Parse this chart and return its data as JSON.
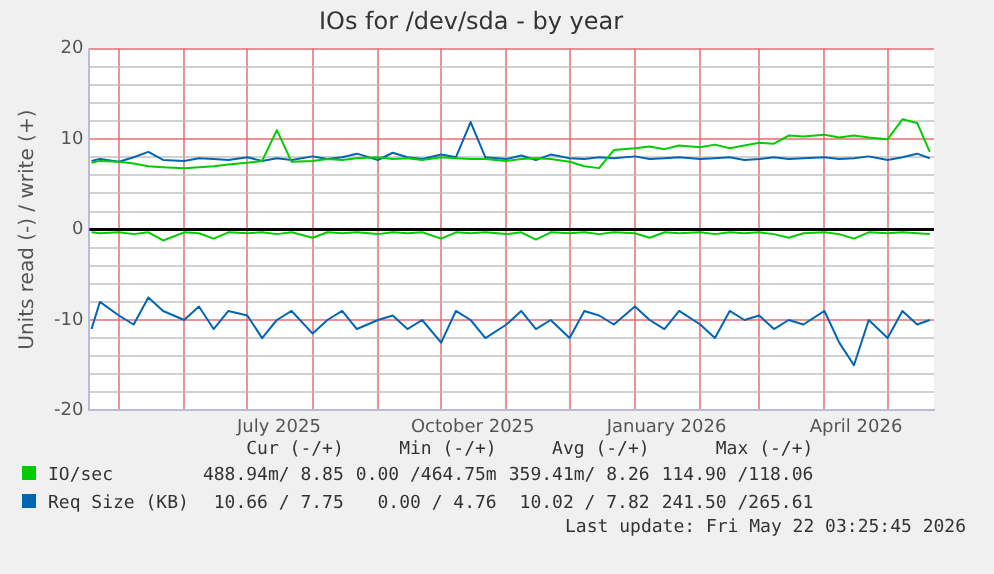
{
  "chart_data": {
    "type": "line",
    "title": "IOs for /dev/sda - by year",
    "ylabel": "Units read (-) / write (+)",
    "x": [
      "2025-04-18",
      "2025-04-22",
      "2025-05-01",
      "2025-05-08",
      "2025-05-15",
      "2025-05-22",
      "2025-06-01",
      "2025-06-08",
      "2025-06-15",
      "2025-06-22",
      "2025-07-01",
      "2025-07-08",
      "2025-07-15",
      "2025-07-22",
      "2025-08-01",
      "2025-08-08",
      "2025-08-15",
      "2025-08-22",
      "2025-09-01",
      "2025-09-08",
      "2025-09-15",
      "2025-09-22",
      "2025-10-01",
      "2025-10-08",
      "2025-10-15",
      "2025-10-22",
      "2025-11-01",
      "2025-11-08",
      "2025-11-15",
      "2025-11-22",
      "2025-12-01",
      "2025-12-08",
      "2025-12-15",
      "2025-12-22",
      "2026-01-01",
      "2026-01-08",
      "2026-01-15",
      "2026-01-22",
      "2026-02-01",
      "2026-02-08",
      "2026-02-15",
      "2026-02-22",
      "2026-03-01",
      "2026-03-08",
      "2026-03-15",
      "2026-03-22",
      "2026-04-01",
      "2026-04-08",
      "2026-04-15",
      "2026-04-22",
      "2026-05-01",
      "2026-05-08",
      "2026-05-15",
      "2026-05-21"
    ],
    "series": [
      {
        "color": "#00cc00",
        "values": [
          -0.3,
          -0.4,
          -0.3,
          -0.5,
          -0.3,
          -1.2,
          -0.3,
          -0.4,
          -1.0,
          -0.3,
          -0.4,
          -0.3,
          -0.5,
          -0.3,
          -0.9,
          -0.3,
          -0.4,
          -0.3,
          -0.5,
          -0.3,
          -0.4,
          -0.3,
          -1.0,
          -0.3,
          -0.4,
          -0.3,
          -0.5,
          -0.3,
          -1.1,
          -0.3,
          -0.4,
          -0.3,
          -0.5,
          -0.3,
          -0.4,
          -0.9,
          -0.3,
          -0.4,
          -0.3,
          -0.5,
          -0.3,
          -0.4,
          -0.3,
          -0.5,
          -0.9,
          -0.4,
          -0.3,
          -0.5,
          -1.0,
          -0.3,
          -0.4,
          -0.3,
          -0.4,
          -0.5
        ]
      },
      {
        "name": "IO/sec",
        "color": "#00cc00",
        "values": [
          7.4,
          7.6,
          7.5,
          7.3,
          7.0,
          6.9,
          6.8,
          6.9,
          7.0,
          7.2,
          7.4,
          7.6,
          11.0,
          7.5,
          7.6,
          7.8,
          7.7,
          7.9,
          8.0,
          7.8,
          7.9,
          7.7,
          8.0,
          7.9,
          7.8,
          7.8,
          7.6,
          7.8,
          7.9,
          7.8,
          7.5,
          7.0,
          6.8,
          8.8,
          9.0,
          9.2,
          8.9,
          9.3,
          9.1,
          9.4,
          9.0,
          9.3,
          9.6,
          9.5,
          10.4,
          10.3,
          10.5,
          10.2,
          10.4,
          10.2,
          10.0,
          12.2,
          11.8,
          8.6
        ]
      },
      {
        "color": "#0066b3",
        "values": [
          -11,
          -8,
          -9.5,
          -10.5,
          -7.5,
          -9,
          -10,
          -8.5,
          -11,
          -9,
          -9.5,
          -12,
          -10,
          -9,
          -11.5,
          -10,
          -9,
          -11,
          -10,
          -9.5,
          -11,
          -10,
          -12.5,
          -9,
          -10,
          -12,
          -10.5,
          -9,
          -11,
          -10,
          -12,
          -9,
          -9.5,
          -10.5,
          -8.5,
          -10,
          -11,
          -9,
          -10.5,
          -12,
          -9,
          -10,
          -9.5,
          -11,
          -10,
          -10.5,
          -9,
          -12.5,
          -15,
          -10,
          -12,
          -9,
          -10.5,
          -10
        ]
      },
      {
        "name": "Req Size (KB)",
        "color": "#0066b3",
        "values": [
          7.6,
          7.8,
          7.5,
          8.0,
          8.6,
          7.7,
          7.6,
          7.9,
          7.8,
          7.7,
          8.0,
          7.6,
          7.9,
          7.7,
          8.1,
          7.8,
          8.0,
          8.4,
          7.7,
          8.5,
          8.0,
          7.8,
          8.3,
          8.0,
          11.9,
          8.0,
          7.8,
          8.2,
          7.7,
          8.3,
          7.9,
          7.8,
          8.0,
          7.9,
          8.1,
          7.8,
          7.9,
          8.0,
          7.8,
          7.9,
          8.0,
          7.7,
          7.8,
          8.0,
          7.8,
          7.9,
          8.0,
          7.8,
          7.9,
          8.1,
          7.7,
          8.0,
          8.4,
          7.9
        ]
      }
    ],
    "xlim": [
      "2025-04-17",
      "2026-05-23"
    ],
    "xticks": [
      {
        "value": "2025-05-01",
        "label": null
      },
      {
        "value": "2025-06-01",
        "label": null
      },
      {
        "value": "2025-07-01",
        "label": null
      },
      {
        "value": "2025-07-16",
        "label": "July 2025"
      },
      {
        "value": "2025-08-01",
        "label": null
      },
      {
        "value": "2025-09-01",
        "label": null
      },
      {
        "value": "2025-10-01",
        "label": null
      },
      {
        "value": "2025-10-16",
        "label": "October 2025"
      },
      {
        "value": "2025-11-01",
        "label": null
      },
      {
        "value": "2025-12-01",
        "label": null
      },
      {
        "value": "2026-01-01",
        "label": null
      },
      {
        "value": "2026-01-16",
        "label": "January 2026"
      },
      {
        "value": "2026-02-01",
        "label": null
      },
      {
        "value": "2026-03-01",
        "label": null
      },
      {
        "value": "2026-04-01",
        "label": null
      },
      {
        "value": "2026-04-16",
        "label": "April 2026"
      },
      {
        "value": "2026-05-01",
        "label": null
      }
    ],
    "ylim": [
      -20,
      20
    ],
    "yticks": [
      -20,
      {
        "value": -18,
        "label": null
      },
      {
        "value": -16,
        "label": null
      },
      {
        "value": -14,
        "label": null
      },
      {
        "value": -12,
        "label": null
      },
      -10,
      {
        "value": -8,
        "label": null
      },
      {
        "value": -6,
        "label": null
      },
      {
        "value": -4,
        "label": null
      },
      {
        "value": -2,
        "label": null
      },
      0,
      {
        "value": 2,
        "label": null
      },
      {
        "value": 4,
        "label": null
      },
      {
        "value": 6,
        "label": null
      },
      {
        "value": 8,
        "label": null
      },
      10,
      {
        "value": 12,
        "label": null
      },
      {
        "value": 14,
        "label": null
      },
      {
        "value": 16,
        "label": null
      },
      {
        "value": 18,
        "label": null
      },
      20
    ],
    "ref_lines": [
      {
        "axis": "y",
        "value": 0,
        "color": "#000000"
      }
    ],
    "grid": true,
    "legend": "bottom",
    "marker": "none",
    "line_style": "solid",
    "annotations": [
      "Cur (-/+)",
      "Min (-/+)",
      "Avg (-/+)",
      "Max (-/+)",
      "488.94m/ 8.85",
      "0.00 /464.75m",
      "359.41m/ 8.26",
      "114.90 /118.06",
      "10.66 / 7.75",
      "0.00 / 4.76",
      "10.02 / 7.82",
      "241.50 /265.61",
      "Last update: Fri May 22 03:25:45 2026"
    ]
  }
}
